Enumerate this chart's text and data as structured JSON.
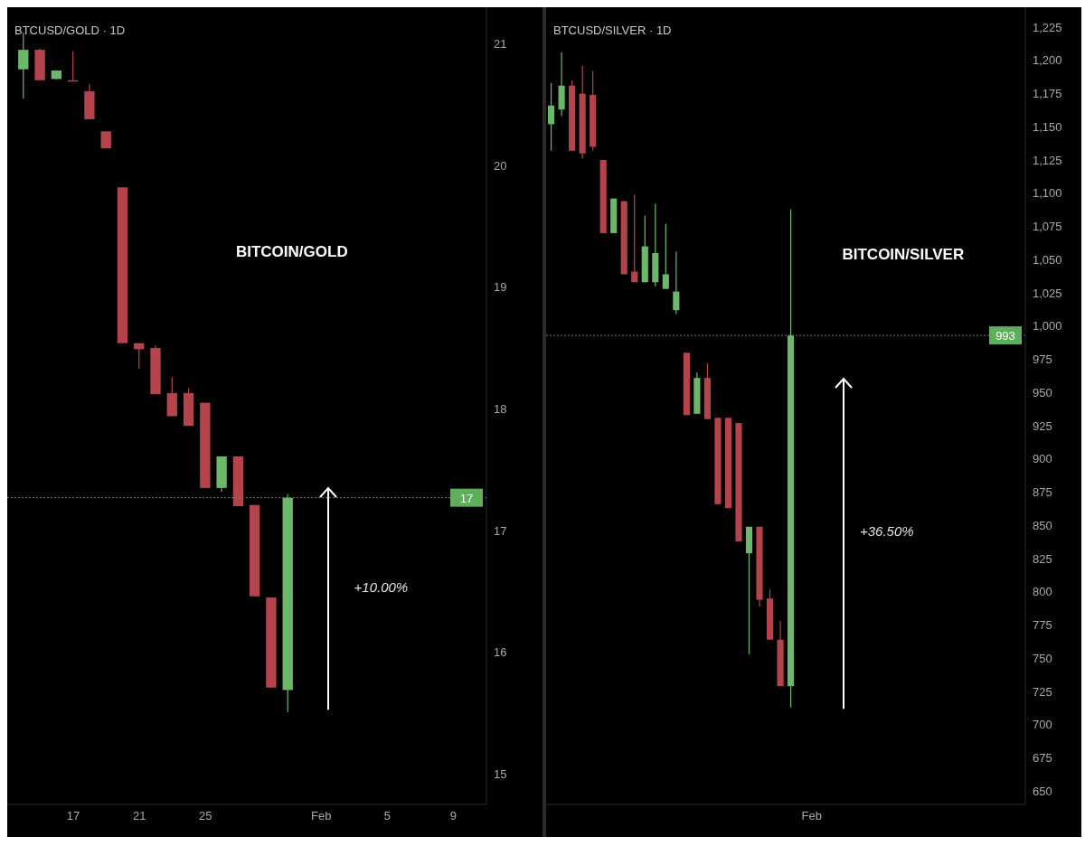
{
  "chart_data": [
    {
      "type": "candlestick",
      "title": "BTCUSD/GOLD · 1D",
      "annotations": [
        "BITCOIN/GOLD",
        "+10.00%"
      ],
      "x": [
        "--01-14",
        "--01-15",
        "--01-16",
        "--01-17",
        "--01-18",
        "--01-19",
        "--01-20",
        "--01-21",
        "--01-22",
        "--01-23",
        "--01-24",
        "--01-25",
        "--01-26",
        "--01-27",
        "--01-28",
        "--01-29",
        "--01-30"
      ],
      "ohlc": [
        [
          20.79,
          21.09,
          20.55,
          20.95
        ],
        [
          20.95,
          20.96,
          20.7,
          20.7
        ],
        [
          20.71,
          20.78,
          20.71,
          20.78
        ],
        [
          20.7,
          20.94,
          20.7,
          20.7
        ],
        [
          20.61,
          20.67,
          20.38,
          20.38
        ],
        [
          20.28,
          20.28,
          20.14,
          20.14
        ],
        [
          19.82,
          19.82,
          18.54,
          18.54
        ],
        [
          18.54,
          18.54,
          18.33,
          18.49
        ],
        [
          18.5,
          18.52,
          18.12,
          18.12
        ],
        [
          18.13,
          18.26,
          17.94,
          17.94
        ],
        [
          18.13,
          18.17,
          17.86,
          17.86
        ],
        [
          18.05,
          18.05,
          17.35,
          17.35
        ],
        [
          17.35,
          17.61,
          17.32,
          17.61
        ],
        [
          17.61,
          17.61,
          17.2,
          17.2
        ],
        [
          17.21,
          17.21,
          16.46,
          16.46
        ],
        [
          16.45,
          16.45,
          15.71,
          15.71
        ],
        [
          15.69,
          17.3,
          15.51,
          17.27
        ]
      ],
      "colors": [
        "#6cb86a",
        "#b5434b",
        "#6cb86a",
        "#b5434b",
        "#b5434b",
        "#b5434b",
        "#b5434b",
        "#b5434b",
        "#b5434b",
        "#b5434b",
        "#b5434b",
        "#b5434b",
        "#6cb86a",
        "#b5434b",
        "#b5434b",
        "#b5434b",
        "#6cb86a"
      ],
      "xlim": [
        "--01-13",
        "--02-11"
      ],
      "xticks": [
        {
          "value": "--01-17",
          "label": "17"
        },
        {
          "value": "--01-21",
          "label": "21"
        },
        {
          "value": "--01-25",
          "label": "25"
        },
        {
          "value": "--02-01",
          "label": "Feb"
        },
        {
          "value": "--02-05",
          "label": "5"
        },
        {
          "value": "--02-09",
          "label": "9"
        }
      ],
      "ylim": [
        14.75,
        21.3
      ],
      "yticks": [
        15,
        16,
        17,
        18,
        19,
        20,
        21
      ],
      "ref_lines": [
        {
          "axis": "y",
          "value": 17.27,
          "label": "17",
          "color": "#777777",
          "line_style": "dotted"
        }
      ],
      "grid": false,
      "legend": false
    },
    {
      "type": "candlestick",
      "title": "BTCUSD/SILVER · 1D",
      "annotations": [
        "BITCOIN/SILVER",
        "+36.50%"
      ],
      "categories": [
        null,
        null,
        null,
        null,
        null,
        null,
        null,
        null,
        null,
        null,
        null,
        null,
        null,
        null,
        null,
        null,
        null,
        null,
        null,
        null,
        null,
        null,
        null,
        null,
        null,
        "Feb",
        null,
        null,
        null,
        null,
        null,
        null,
        null,
        null,
        null,
        null,
        null,
        null,
        null,
        null,
        null,
        null,
        null,
        null,
        null,
        null
      ],
      "ohlc": [
        [
          1152,
          1183,
          1132,
          1166
        ],
        [
          1163,
          1206,
          1158,
          1181
        ],
        [
          1181,
          1185,
          1132,
          1132
        ],
        [
          1175,
          1196,
          1126,
          1130
        ],
        [
          1174,
          1192,
          1132,
          1135
        ],
        [
          1125,
          1125,
          1070,
          1070
        ],
        [
          1070,
          1096,
          1070,
          1096
        ],
        [
          1094,
          1094,
          1039,
          1039
        ],
        [
          1041,
          1099,
          1033,
          1033
        ],
        [
          1033,
          1083,
          1033,
          1060
        ],
        [
          1033,
          1092,
          1030,
          1055
        ],
        [
          1028,
          1077,
          1028,
          1039
        ],
        [
          1012,
          1056,
          1009,
          1026
        ],
        [
          980,
          980,
          933,
          933
        ],
        [
          934,
          965,
          934,
          961
        ],
        [
          961,
          972,
          930,
          930
        ],
        [
          931,
          931,
          866,
          866
        ],
        [
          931,
          931,
          863,
          863
        ],
        [
          927,
          927,
          838,
          838
        ],
        [
          829,
          849,
          753,
          849
        ],
        [
          849,
          849,
          789,
          794
        ],
        [
          795,
          802,
          764,
          764
        ],
        [
          764,
          778,
          729,
          729
        ],
        [
          729,
          1088,
          713,
          993
        ],
        null,
        null,
        null,
        null,
        null,
        null,
        null,
        null,
        null,
        null,
        null,
        null,
        null,
        null,
        null,
        null,
        null,
        null,
        null,
        null,
        null,
        null
      ],
      "colors": [
        "#6cb86a",
        "#6cb86a",
        "#b5434b",
        "#b5434b",
        "#b5434b",
        "#b5434b",
        "#6cb86a",
        "#b5434b",
        "#b5434b",
        "#6cb86a",
        "#6cb86a",
        "#6cb86a",
        "#6cb86a",
        "#b5434b",
        "#6cb86a",
        "#b5434b",
        "#b5434b",
        "#b5434b",
        "#b5434b",
        "#6cb86a",
        "#b5434b",
        "#b5434b",
        "#b5434b",
        "#6cb86a",
        null,
        null,
        null,
        null,
        null,
        null,
        null,
        null,
        null,
        null,
        null,
        null,
        null,
        null,
        null,
        null,
        null,
        null,
        null,
        null,
        null,
        null
      ],
      "ylim": [
        640,
        1240
      ],
      "yticks": [
        {
          "value": 650,
          "label": "650"
        },
        {
          "value": 675,
          "label": "675"
        },
        {
          "value": 700,
          "label": "700"
        },
        {
          "value": 725,
          "label": "725"
        },
        {
          "value": 750,
          "label": "750"
        },
        {
          "value": 775,
          "label": "775"
        },
        {
          "value": 800,
          "label": "800"
        },
        {
          "value": 825,
          "label": "825"
        },
        {
          "value": 850,
          "label": "850"
        },
        {
          "value": 875,
          "label": "875"
        },
        {
          "value": 900,
          "label": "900"
        },
        {
          "value": 925,
          "label": "925"
        },
        {
          "value": 950,
          "label": "950"
        },
        {
          "value": 975,
          "label": "975"
        },
        {
          "value": 1000,
          "label": "1,000"
        },
        {
          "value": 1025,
          "label": "1,025"
        },
        {
          "value": 1050,
          "label": "1,050"
        },
        {
          "value": 1075,
          "label": "1,075"
        },
        {
          "value": 1100,
          "label": "1,100"
        },
        {
          "value": 1125,
          "label": "1,125"
        },
        {
          "value": 1150,
          "label": "1,150"
        },
        {
          "value": 1175,
          "label": "1,175"
        },
        {
          "value": 1200,
          "label": "1,200"
        },
        {
          "value": 1225,
          "label": "1,225"
        }
      ],
      "ref_lines": [
        {
          "axis": "y",
          "value": 993,
          "label": "993",
          "color": "#777777",
          "line_style": "dotted"
        }
      ],
      "grid": false,
      "legend": false
    }
  ]
}
